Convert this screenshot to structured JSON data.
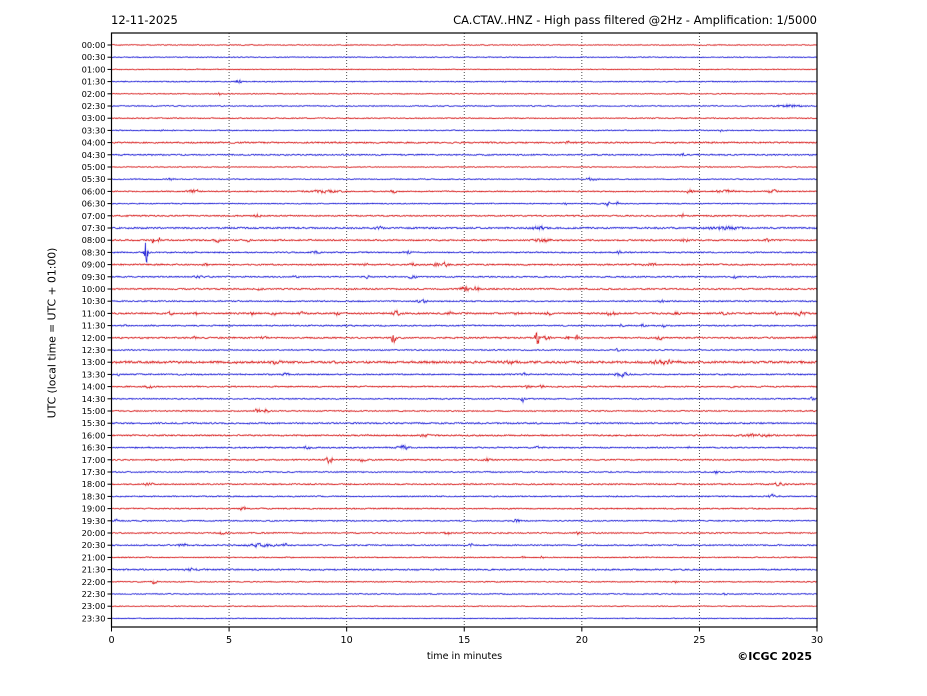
{
  "header": {
    "date": "12-11-2025",
    "title": "CA.CTAV..HNZ - High pass filtered @2Hz - Amplification: 1/5000"
  },
  "y_axis": {
    "label": "UTC (local time = UTC + 01:00)"
  },
  "footer": {
    "xlabel": "time in minutes",
    "copyright": "©ICGC 2025"
  },
  "chart_data": {
    "type": "line",
    "subtype": "helicorder-dayplot",
    "title": "CA.CTAV..HNZ - High pass filtered @2Hz - Amplification: 1/5000",
    "date": "12-11-2025",
    "xlabel": "time in minutes",
    "ylabel": "UTC (local time = UTC + 01:00)",
    "x_range": [
      0,
      30
    ],
    "x_ticks": [
      0,
      5,
      10,
      15,
      20,
      25,
      30
    ],
    "grid_minutes": [
      5,
      10,
      15,
      20,
      25
    ],
    "minutes_per_row": 30,
    "colors": {
      "red": "#d92525",
      "blue": "#2828d8",
      "grid": "#3a3a3a",
      "frame": "#000000"
    },
    "events_format": "[minute_in_row, peak_amplitude_px, width_minutes]",
    "rows": [
      {
        "label": "00:00",
        "color": "red",
        "noise": 0.5,
        "events": []
      },
      {
        "label": "00:30",
        "color": "blue",
        "noise": 0.5,
        "events": []
      },
      {
        "label": "01:00",
        "color": "red",
        "noise": 0.5,
        "events": []
      },
      {
        "label": "01:30",
        "color": "blue",
        "noise": 0.6,
        "events": [
          [
            5.4,
            4,
            0.2
          ]
        ]
      },
      {
        "label": "02:00",
        "color": "red",
        "noise": 0.5,
        "events": [
          [
            4.6,
            1.6,
            0.15
          ]
        ]
      },
      {
        "label": "02:30",
        "color": "blue",
        "noise": 0.6,
        "events": [
          [
            28.8,
            1.1,
            1.2
          ]
        ]
      },
      {
        "label": "03:00",
        "color": "red",
        "noise": 0.6,
        "events": []
      },
      {
        "label": "03:30",
        "color": "blue",
        "noise": 0.6,
        "events": [
          [
            2.2,
            1.2,
            0.2
          ],
          [
            25.9,
            1.6,
            0.2
          ]
        ]
      },
      {
        "label": "04:00",
        "color": "red",
        "noise": 0.9,
        "events": [
          [
            19.4,
            1.6,
            0.15
          ]
        ]
      },
      {
        "label": "04:30",
        "color": "blue",
        "noise": 0.8,
        "events": [
          [
            24.3,
            1.5,
            0.2
          ]
        ]
      },
      {
        "label": "05:00",
        "color": "red",
        "noise": 0.5,
        "events": []
      },
      {
        "label": "05:30",
        "color": "blue",
        "noise": 0.6,
        "events": [
          [
            2.5,
            1.0,
            0.3
          ],
          [
            20.4,
            1.6,
            0.5
          ]
        ]
      },
      {
        "label": "06:00",
        "color": "red",
        "noise": 0.7,
        "events": [
          [
            3.5,
            2.0,
            0.5
          ],
          [
            9.0,
            1.2,
            1.5
          ],
          [
            12.0,
            2.0,
            0.2
          ],
          [
            24.6,
            2.2,
            0.3
          ],
          [
            26.1,
            1.5,
            0.8
          ],
          [
            28.1,
            2.0,
            0.4
          ]
        ]
      },
      {
        "label": "06:30",
        "color": "blue",
        "noise": 0.6,
        "events": [
          [
            19.3,
            1.5,
            0.15
          ],
          [
            21.1,
            3.6,
            0.15
          ],
          [
            21.5,
            2.6,
            0.12
          ]
        ]
      },
      {
        "label": "07:00",
        "color": "red",
        "noise": 0.8,
        "events": [
          [
            6.2,
            2.8,
            0.25
          ],
          [
            24.3,
            2.6,
            0.12
          ]
        ]
      },
      {
        "label": "07:30",
        "color": "blue",
        "noise": 1.0,
        "events": [
          [
            11.4,
            1.5,
            0.4
          ],
          [
            18.2,
            1.8,
            0.6
          ],
          [
            26.0,
            1.5,
            1.5
          ]
        ]
      },
      {
        "label": "08:00",
        "color": "red",
        "noise": 0.9,
        "events": [
          [
            1.75,
            3.6,
            0.12
          ],
          [
            2.05,
            3.2,
            0.12
          ],
          [
            4.5,
            2.0,
            0.3
          ],
          [
            5.8,
            1.5,
            0.2
          ],
          [
            18.3,
            2.0,
            0.7
          ],
          [
            24.4,
            2.0,
            0.4
          ],
          [
            27.9,
            1.8,
            0.3
          ]
        ]
      },
      {
        "label": "08:30",
        "color": "blue",
        "noise": 0.8,
        "events": [
          [
            1.47,
            21,
            0.16
          ],
          [
            8.7,
            1.5,
            0.3
          ],
          [
            12.6,
            1.5,
            0.3
          ],
          [
            21.6,
            1.8,
            0.2
          ]
        ]
      },
      {
        "label": "09:00",
        "color": "red",
        "noise": 0.9,
        "events": [
          [
            4.0,
            1.5,
            0.2
          ],
          [
            10.8,
            1.8,
            0.2
          ],
          [
            12.8,
            1.8,
            0.2
          ],
          [
            13.8,
            2.2,
            0.25
          ],
          [
            14.2,
            2.6,
            0.3
          ],
          [
            22.9,
            1.8,
            0.5
          ]
        ]
      },
      {
        "label": "09:30",
        "color": "blue",
        "noise": 0.8,
        "events": [
          [
            3.8,
            1.3,
            0.5
          ],
          [
            7.8,
            1.3,
            0.2
          ],
          [
            10.9,
            1.5,
            0.2
          ],
          [
            12.8,
            2.0,
            0.4
          ],
          [
            26.5,
            1.5,
            0.2
          ]
        ]
      },
      {
        "label": "10:00",
        "color": "red",
        "noise": 0.9,
        "events": [
          [
            6.3,
            1.2,
            0.3
          ],
          [
            15.0,
            3.2,
            0.4
          ],
          [
            15.5,
            2.4,
            0.3
          ]
        ]
      },
      {
        "label": "10:30",
        "color": "blue",
        "noise": 0.8,
        "events": [
          [
            13.2,
            2.2,
            0.4
          ],
          [
            23.4,
            1.5,
            0.2
          ]
        ]
      },
      {
        "label": "11:00",
        "color": "red",
        "noise": 1.0,
        "events": [
          [
            2.5,
            1.8,
            0.2
          ],
          [
            3.6,
            1.8,
            0.2
          ],
          [
            6.0,
            1.8,
            0.2
          ],
          [
            6.9,
            1.5,
            0.2
          ],
          [
            8.1,
            1.5,
            0.2
          ],
          [
            9.6,
            1.8,
            0.2
          ],
          [
            12.1,
            3.0,
            0.3
          ],
          [
            14.4,
            1.8,
            0.2
          ],
          [
            17.2,
            2.0,
            0.2
          ],
          [
            18.6,
            1.8,
            0.3
          ],
          [
            21.3,
            2.2,
            0.5
          ],
          [
            24.0,
            1.5,
            0.3
          ],
          [
            26.0,
            1.5,
            0.3
          ],
          [
            28.2,
            1.6,
            0.3
          ],
          [
            29.3,
            2.4,
            0.6
          ]
        ]
      },
      {
        "label": "11:30",
        "color": "blue",
        "noise": 0.8,
        "events": [
          [
            0.55,
            1.6,
            0.15
          ],
          [
            21.7,
            2.0,
            0.15
          ],
          [
            22.6,
            1.8,
            0.15
          ],
          [
            23.5,
            1.8,
            0.15
          ]
        ]
      },
      {
        "label": "12:00",
        "color": "red",
        "noise": 0.9,
        "events": [
          [
            3.5,
            1.6,
            0.2
          ],
          [
            6.5,
            1.6,
            0.3
          ],
          [
            12.0,
            9,
            0.18
          ],
          [
            18.1,
            14,
            0.18
          ],
          [
            18.5,
            2.5,
            0.3
          ],
          [
            19.4,
            4.5,
            0.12
          ],
          [
            19.8,
            4.5,
            0.12
          ],
          [
            23.3,
            1.8,
            0.3
          ],
          [
            29.9,
            1.6,
            0.2
          ]
        ]
      },
      {
        "label": "12:30",
        "color": "blue",
        "noise": 0.7,
        "events": [
          [
            21.5,
            1.6,
            0.2
          ]
        ]
      },
      {
        "label": "13:00",
        "color": "red",
        "noise": 1.4,
        "events": [
          [
            7.0,
            1.6,
            0.5
          ],
          [
            17.0,
            1.6,
            0.5
          ],
          [
            23.5,
            1.8,
            1.0
          ]
        ]
      },
      {
        "label": "13:30",
        "color": "blue",
        "noise": 0.8,
        "events": [
          [
            0.3,
            1.3,
            0.15
          ],
          [
            7.4,
            1.3,
            0.3
          ],
          [
            17.6,
            1.3,
            0.3
          ],
          [
            21.7,
            2.2,
            0.6
          ]
        ]
      },
      {
        "label": "14:00",
        "color": "red",
        "noise": 0.8,
        "events": [
          [
            1.6,
            1.6,
            0.4
          ],
          [
            17.7,
            1.8,
            0.2
          ],
          [
            18.3,
            1.6,
            0.2
          ],
          [
            26.4,
            1.6,
            0.2
          ]
        ]
      },
      {
        "label": "14:30",
        "color": "blue",
        "noise": 0.7,
        "events": [
          [
            17.5,
            3.6,
            0.15
          ],
          [
            29.8,
            1.8,
            0.2
          ]
        ]
      },
      {
        "label": "15:00",
        "color": "red",
        "noise": 0.7,
        "events": [
          [
            6.2,
            2.6,
            0.25
          ],
          [
            6.6,
            2.4,
            0.2
          ]
        ]
      },
      {
        "label": "15:30",
        "color": "blue",
        "noise": 0.9,
        "events": []
      },
      {
        "label": "16:00",
        "color": "red",
        "noise": 0.9,
        "events": [
          [
            13.3,
            1.3,
            0.5
          ],
          [
            27.5,
            1.5,
            1.2
          ]
        ]
      },
      {
        "label": "16:30",
        "color": "blue",
        "noise": 0.8,
        "events": [
          [
            8.3,
            1.5,
            0.3
          ],
          [
            12.4,
            2.0,
            0.5
          ],
          [
            18.1,
            1.3,
            0.2
          ],
          [
            24.6,
            1.3,
            0.2
          ]
        ]
      },
      {
        "label": "17:00",
        "color": "red",
        "noise": 0.8,
        "events": [
          [
            9.25,
            4.2,
            0.3
          ],
          [
            10.7,
            1.8,
            0.3
          ],
          [
            16.0,
            1.3,
            0.4
          ]
        ]
      },
      {
        "label": "17:30",
        "color": "blue",
        "noise": 0.7,
        "events": [
          [
            25.7,
            1.8,
            0.2
          ]
        ]
      },
      {
        "label": "18:00",
        "color": "red",
        "noise": 0.8,
        "events": [
          [
            1.6,
            1.8,
            0.4
          ],
          [
            28.4,
            2.0,
            0.4
          ]
        ]
      },
      {
        "label": "18:30",
        "color": "blue",
        "noise": 0.7,
        "events": [
          [
            28.1,
            2.0,
            0.4
          ]
        ]
      },
      {
        "label": "19:00",
        "color": "red",
        "noise": 0.7,
        "events": [
          [
            5.6,
            2.2,
            0.3
          ]
        ]
      },
      {
        "label": "19:30",
        "color": "blue",
        "noise": 0.7,
        "events": [
          [
            0.2,
            1.3,
            0.2
          ],
          [
            17.2,
            1.8,
            0.3
          ]
        ]
      },
      {
        "label": "20:00",
        "color": "red",
        "noise": 0.7,
        "events": [
          [
            4.7,
            1.3,
            0.4
          ],
          [
            14.3,
            1.3,
            0.3
          ],
          [
            19.8,
            1.8,
            0.2
          ]
        ]
      },
      {
        "label": "20:30",
        "color": "blue",
        "noise": 0.8,
        "events": [
          [
            3.0,
            2.2,
            0.35
          ],
          [
            6.4,
            1.6,
            1.2
          ],
          [
            7.4,
            2.0,
            0.2
          ],
          [
            15.3,
            1.5,
            0.2
          ]
        ]
      },
      {
        "label": "21:00",
        "color": "red",
        "noise": 0.6,
        "events": [
          [
            17.5,
            1.5,
            0.15
          ],
          [
            18.3,
            1.3,
            0.15
          ]
        ]
      },
      {
        "label": "21:30",
        "color": "blue",
        "noise": 0.9,
        "events": [
          [
            3.4,
            1.8,
            0.5
          ]
        ]
      },
      {
        "label": "22:00",
        "color": "red",
        "noise": 0.6,
        "events": [
          [
            1.8,
            2.2,
            0.3
          ],
          [
            24.0,
            1.5,
            0.2
          ]
        ]
      },
      {
        "label": "22:30",
        "color": "blue",
        "noise": 0.6,
        "events": [
          [
            26.1,
            1.2,
            0.15
          ]
        ]
      },
      {
        "label": "23:00",
        "color": "red",
        "noise": 0.5,
        "events": []
      },
      {
        "label": "23:30",
        "color": "blue",
        "noise": 0.5,
        "events": []
      }
    ]
  }
}
